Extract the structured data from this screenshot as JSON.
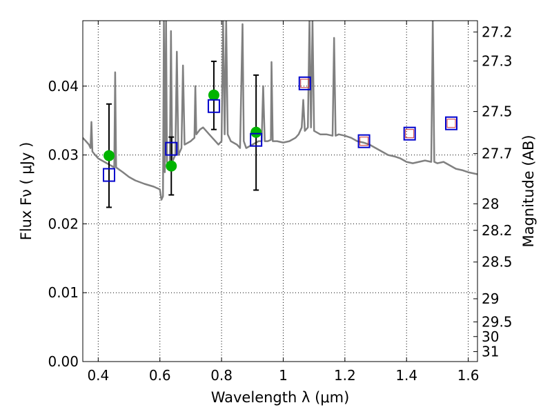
{
  "chart_data": {
    "type": "scatter",
    "xlabel": "Wavelength  λ (μm)",
    "ylabel_left": "Flux  Fν  ( μJy )",
    "ylabel_right": "Magnitude (AB)",
    "xlim": [
      0.35,
      1.63
    ],
    "ylim": [
      0.0,
      0.0495
    ],
    "x_ticks": [
      0.4,
      0.6,
      0.8,
      1.0,
      1.2,
      1.4,
      1.6
    ],
    "x_tick_labels": [
      "0.4",
      "0.6",
      "0.8",
      "1",
      "1.2",
      "1.4",
      "1.6"
    ],
    "y_ticks": [
      0.0,
      0.01,
      0.02,
      0.03,
      0.04
    ],
    "y_tick_labels": [
      "0.00",
      "0.01",
      "0.02",
      "0.03",
      "0.04"
    ],
    "right_ticks": [
      27.2,
      27.3,
      27.5,
      27.7,
      28,
      28.2,
      28.5,
      29,
      29.5,
      30,
      31
    ],
    "right_tick_labels": [
      "27.2",
      "27.3",
      "27.5",
      "27.7",
      "28",
      "28.2",
      "28.5",
      "29",
      "29.5",
      "30",
      "31"
    ],
    "grid": true,
    "colors": {
      "spectrum": "#808080",
      "model": "#0000cc",
      "observed": "#00b400",
      "errorbar": "#000000",
      "inner_square": "#cc3333"
    },
    "observed": [
      {
        "x": 0.435,
        "y": 0.0299,
        "err_low": 0.0224,
        "err_high": 0.0374
      },
      {
        "x": 0.637,
        "y": 0.0284,
        "err_low": 0.0242,
        "err_high": 0.0326
      },
      {
        "x": 0.775,
        "y": 0.0387,
        "err_low": 0.0337,
        "err_high": 0.0436
      },
      {
        "x": 0.912,
        "y": 0.0333,
        "err_low": 0.0249,
        "err_high": 0.0416
      }
    ],
    "model_points": [
      {
        "x": 0.435,
        "y": 0.0271
      },
      {
        "x": 0.637,
        "y": 0.0309
      },
      {
        "x": 0.775,
        "y": 0.0371
      },
      {
        "x": 0.912,
        "y": 0.0322
      },
      {
        "x": 1.07,
        "y": 0.0404
      },
      {
        "x": 1.262,
        "y": 0.032
      },
      {
        "x": 1.41,
        "y": 0.0331
      },
      {
        "x": 1.545,
        "y": 0.0346
      }
    ],
    "inner_points": [
      {
        "x": 1.07,
        "y": 0.0404
      },
      {
        "x": 1.262,
        "y": 0.032
      },
      {
        "x": 1.41,
        "y": 0.0331
      },
      {
        "x": 1.545,
        "y": 0.0346
      }
    ],
    "spectrum": [
      [
        0.35,
        0.0325
      ],
      [
        0.36,
        0.032
      ],
      [
        0.37,
        0.0315
      ],
      [
        0.375,
        0.031
      ],
      [
        0.378,
        0.0348
      ],
      [
        0.381,
        0.0305
      ],
      [
        0.39,
        0.03
      ],
      [
        0.4,
        0.0295
      ],
      [
        0.42,
        0.029
      ],
      [
        0.44,
        0.0285
      ],
      [
        0.452,
        0.0282
      ],
      [
        0.455,
        0.042
      ],
      [
        0.458,
        0.0282
      ],
      [
        0.48,
        0.0275
      ],
      [
        0.5,
        0.0268
      ],
      [
        0.52,
        0.0263
      ],
      [
        0.55,
        0.0258
      ],
      [
        0.58,
        0.0254
      ],
      [
        0.6,
        0.025
      ],
      [
        0.605,
        0.0235
      ],
      [
        0.61,
        0.024
      ],
      [
        0.613,
        0.0495
      ],
      [
        0.616,
        0.0275
      ],
      [
        0.62,
        0.0495
      ],
      [
        0.623,
        0.029
      ],
      [
        0.632,
        0.028
      ],
      [
        0.636,
        0.048
      ],
      [
        0.64,
        0.029
      ],
      [
        0.65,
        0.03
      ],
      [
        0.655,
        0.045
      ],
      [
        0.66,
        0.03
      ],
      [
        0.67,
        0.031
      ],
      [
        0.675,
        0.043
      ],
      [
        0.68,
        0.0315
      ],
      [
        0.7,
        0.032
      ],
      [
        0.712,
        0.0325
      ],
      [
        0.715,
        0.04
      ],
      [
        0.718,
        0.033
      ],
      [
        0.73,
        0.0337
      ],
      [
        0.74,
        0.034
      ],
      [
        0.75,
        0.0335
      ],
      [
        0.76,
        0.033
      ],
      [
        0.77,
        0.0325
      ],
      [
        0.78,
        0.032
      ],
      [
        0.79,
        0.0315
      ],
      [
        0.8,
        0.032
      ],
      [
        0.805,
        0.0495
      ],
      [
        0.81,
        0.033
      ],
      [
        0.815,
        0.0495
      ],
      [
        0.82,
        0.033
      ],
      [
        0.83,
        0.032
      ],
      [
        0.85,
        0.0315
      ],
      [
        0.86,
        0.031
      ],
      [
        0.868,
        0.049
      ],
      [
        0.872,
        0.032
      ],
      [
        0.88,
        0.031
      ],
      [
        0.9,
        0.0315
      ],
      [
        0.92,
        0.032
      ],
      [
        0.93,
        0.032
      ],
      [
        0.935,
        0.04
      ],
      [
        0.94,
        0.032
      ],
      [
        0.95,
        0.032
      ],
      [
        0.96,
        0.0322
      ],
      [
        0.962,
        0.0435
      ],
      [
        0.966,
        0.032
      ],
      [
        0.98,
        0.032
      ],
      [
        1.0,
        0.0318
      ],
      [
        1.02,
        0.032
      ],
      [
        1.04,
        0.0325
      ],
      [
        1.05,
        0.033
      ],
      [
        1.06,
        0.034
      ],
      [
        1.065,
        0.038
      ],
      [
        1.07,
        0.0335
      ],
      [
        1.08,
        0.034
      ],
      [
        1.085,
        0.0495
      ],
      [
        1.09,
        0.034
      ],
      [
        1.095,
        0.0495
      ],
      [
        1.1,
        0.0335
      ],
      [
        1.12,
        0.033
      ],
      [
        1.14,
        0.033
      ],
      [
        1.16,
        0.0328
      ],
      [
        1.165,
        0.047
      ],
      [
        1.17,
        0.0328
      ],
      [
        1.18,
        0.033
      ],
      [
        1.2,
        0.0328
      ],
      [
        1.22,
        0.0325
      ],
      [
        1.24,
        0.032
      ],
      [
        1.26,
        0.0318
      ],
      [
        1.28,
        0.0315
      ],
      [
        1.3,
        0.031
      ],
      [
        1.32,
        0.0305
      ],
      [
        1.34,
        0.03
      ],
      [
        1.36,
        0.0298
      ],
      [
        1.38,
        0.0295
      ],
      [
        1.4,
        0.029
      ],
      [
        1.42,
        0.0288
      ],
      [
        1.44,
        0.029
      ],
      [
        1.46,
        0.0292
      ],
      [
        1.48,
        0.029
      ],
      [
        1.485,
        0.0495
      ],
      [
        1.49,
        0.029
      ],
      [
        1.5,
        0.0288
      ],
      [
        1.52,
        0.029
      ],
      [
        1.54,
        0.0285
      ],
      [
        1.56,
        0.028
      ],
      [
        1.58,
        0.0278
      ],
      [
        1.6,
        0.0275
      ],
      [
        1.63,
        0.0272
      ]
    ]
  }
}
